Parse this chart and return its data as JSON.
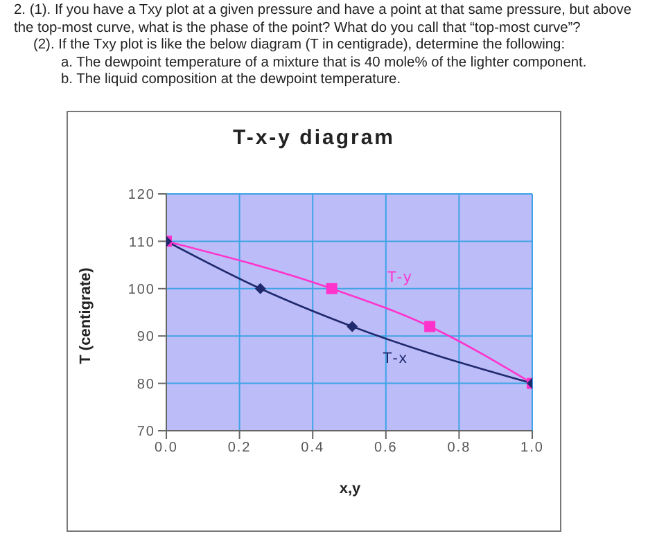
{
  "chart_data": {
    "type": "line",
    "title": "T-x-y diagram",
    "xlabel": "x,y",
    "ylabel": "T (centigrate)",
    "annotations": [
      "2.  (1). If you have a Txy plot at a given pressure and have a point at that same pressure, but above the top-most curve, what is the phase of the point? What do you call that “top-most curve”?",
      "(2). If the Txy plot is like the below diagram (T in centigrade), determine the following:",
      "a.   The dewpoint temperature of a mixture that is 40 mole% of the lighter component.",
      "b.   The liquid composition at the dewpoint temperature."
    ],
    "series": [
      {
        "name": "T-y",
        "color": "#ff33cc",
        "marker": "square",
        "x": [
          0,
          0.452,
          0.72,
          1
        ],
        "values": [
          110,
          100,
          92,
          80
        ]
      },
      {
        "name": "T-x",
        "color": "#1f2a6e",
        "marker": "diamond",
        "x": [
          0,
          0.257,
          0.508,
          1
        ],
        "values": [
          110,
          100,
          92,
          80
        ]
      }
    ],
    "xlim": [
      0,
      1
    ],
    "xticks": [
      {
        "value": 0,
        "label": "0.0"
      },
      {
        "value": 0.2,
        "label": "0.2"
      },
      {
        "value": 0.4,
        "label": "0.4"
      },
      {
        "value": 0.6,
        "label": "0.6"
      },
      {
        "value": 0.8,
        "label": "0.8"
      },
      {
        "value": 1,
        "label": "1.0"
      }
    ],
    "ylim": [
      70,
      120
    ],
    "yticks": [
      70,
      80,
      90,
      100,
      110,
      120
    ],
    "grid": true
  }
}
